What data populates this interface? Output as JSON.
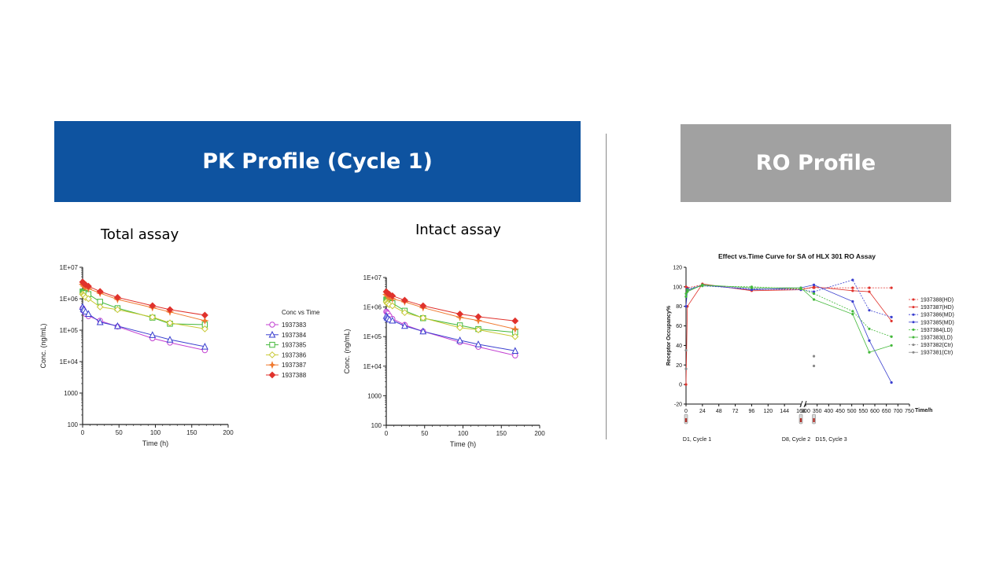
{
  "pk_banner": {
    "label": "PK Profile (Cycle 1)",
    "color": "#0e53a0"
  },
  "ro_banner": {
    "label": "RO Profile",
    "color": "#a1a1a1"
  },
  "chart_data": [
    {
      "type": "line",
      "title": "Total assay",
      "xlabel": "Time (h)",
      "ylabel": "Conc. (ng/mL)",
      "yscale": "log",
      "xlim": [
        0,
        200
      ],
      "ylim": [
        100,
        10000000
      ],
      "xticks": [
        "0",
        "50",
        "100",
        "150",
        "200"
      ],
      "yticks": [
        "100",
        "1000",
        "1E+04",
        "1E+05",
        "1E+06",
        "1E+07"
      ],
      "legend_title": "Conc vs Time",
      "legend_position": "right",
      "series": [
        {
          "name": "1937383",
          "color": "#c23fd1",
          "marker": "circle",
          "x": [
            0,
            1,
            2,
            4,
            8,
            24,
            48,
            96,
            120,
            168
          ],
          "y": [
            500000,
            420000,
            400000,
            330000,
            280000,
            200000,
            130000,
            55000,
            40000,
            23000
          ]
        },
        {
          "name": "1937384",
          "color": "#3a3fcf",
          "marker": "triangle",
          "x": [
            0,
            1,
            2,
            4,
            8,
            24,
            48,
            96,
            120,
            168
          ],
          "y": [
            550000,
            480000,
            450000,
            390000,
            330000,
            180000,
            135000,
            70000,
            50000,
            30000
          ]
        },
        {
          "name": "1937385",
          "color": "#43b83a",
          "marker": "square",
          "x": [
            0,
            1,
            2,
            4,
            8,
            24,
            48,
            96,
            120,
            168
          ],
          "y": [
            1700000,
            1600000,
            1550000,
            1500000,
            1400000,
            800000,
            500000,
            250000,
            160000,
            150000
          ]
        },
        {
          "name": "1937386",
          "color": "#c8c832",
          "marker": "diamond",
          "x": [
            0,
            1,
            2,
            4,
            8,
            24,
            48,
            96,
            120,
            168
          ],
          "y": [
            1400000,
            1300000,
            1250000,
            1100000,
            1000000,
            550000,
            450000,
            260000,
            170000,
            110000
          ]
        },
        {
          "name": "1937387",
          "color": "#f07a30",
          "marker": "star",
          "x": [
            0,
            1,
            2,
            4,
            8,
            24,
            48,
            96,
            120,
            168
          ],
          "y": [
            2900000,
            2700000,
            2500000,
            2300000,
            2100000,
            1500000,
            950000,
            520000,
            380000,
            200000
          ]
        },
        {
          "name": "1937388",
          "color": "#e0322c",
          "marker": "plus",
          "x": [
            0,
            1,
            2,
            4,
            8,
            24,
            48,
            96,
            120,
            168
          ],
          "y": [
            3400000,
            3200000,
            3000000,
            2800000,
            2500000,
            1700000,
            1100000,
            600000,
            450000,
            300000
          ]
        }
      ]
    },
    {
      "type": "line",
      "title": "Intact assay",
      "xlabel": "Time (h)",
      "ylabel": "Conc. (ng/mL)",
      "yscale": "log",
      "xlim": [
        0,
        200
      ],
      "ylim": [
        100,
        10000000
      ],
      "xticks": [
        "0",
        "50",
        "100",
        "150",
        "200"
      ],
      "yticks": [
        "100",
        "1000",
        "1E+04",
        "1E+05",
        "1E+06",
        "1E+07"
      ],
      "series": [
        {
          "name": "1937383",
          "color": "#c23fd1",
          "marker": "circle",
          "x": [
            0,
            1,
            2,
            4,
            8,
            24,
            48,
            96,
            120,
            168
          ],
          "y": [
            700000,
            650000,
            600000,
            500000,
            400000,
            250000,
            150000,
            65000,
            45000,
            23000
          ]
        },
        {
          "name": "1937384",
          "color": "#3a3fcf",
          "marker": "triangle",
          "x": [
            0,
            1,
            2,
            4,
            8,
            24,
            48,
            96,
            120,
            168
          ],
          "y": [
            500000,
            450000,
            420000,
            380000,
            350000,
            230000,
            150000,
            75000,
            55000,
            33000
          ]
        },
        {
          "name": "1937385",
          "color": "#43b83a",
          "marker": "square",
          "x": [
            0,
            1,
            2,
            4,
            8,
            24,
            48,
            96,
            120,
            168
          ],
          "y": [
            1800000,
            1700000,
            1600000,
            1450000,
            1350000,
            750000,
            420000,
            240000,
            180000,
            140000
          ]
        },
        {
          "name": "1937386",
          "color": "#c8c832",
          "marker": "diamond",
          "x": [
            0,
            1,
            2,
            4,
            8,
            24,
            48,
            96,
            120,
            168
          ],
          "y": [
            1500000,
            1350000,
            1300000,
            1200000,
            1100000,
            650000,
            430000,
            200000,
            170000,
            100000
          ]
        },
        {
          "name": "1937387",
          "color": "#f07a30",
          "marker": "star",
          "x": [
            0,
            1,
            2,
            4,
            8,
            24,
            48,
            96,
            120,
            168
          ],
          "y": [
            2700000,
            2500000,
            2300000,
            2100000,
            1900000,
            1500000,
            950000,
            450000,
            350000,
            180000
          ]
        },
        {
          "name": "1937388",
          "color": "#e0322c",
          "marker": "plus",
          "x": [
            0,
            1,
            2,
            4,
            8,
            24,
            48,
            96,
            120,
            168
          ],
          "y": [
            3300000,
            3100000,
            2900000,
            2700000,
            2400000,
            1700000,
            1100000,
            580000,
            470000,
            340000
          ]
        }
      ]
    },
    {
      "type": "line",
      "title": "Effect vs.Time Curve for SA of HLX 301 RO Assay",
      "xlabel": "Time/h",
      "ylabel": "Receptor Occupancy%",
      "xlim": [
        0,
        750
      ],
      "x_axis_break": [
        168,
        300
      ],
      "ylim": [
        -20,
        120
      ],
      "xticks": [
        "0",
        "24",
        "48",
        "72",
        "96",
        "120",
        "144",
        "168",
        "300",
        "350",
        "400",
        "450",
        "500",
        "550",
        "600",
        "650",
        "700",
        "750"
      ],
      "yticks": [
        "-20",
        "0",
        "20",
        "40",
        "60",
        "80",
        "100",
        "120"
      ],
      "dose_markers": [
        "D1, Cycle 1",
        "D8, Cycle 2",
        "D15, Cycle 3"
      ],
      "legend_position": "right",
      "series": [
        {
          "name": "1937388(HD)",
          "color": "#e0322c",
          "x": [
            0,
            2,
            24,
            96,
            168,
            336,
            504,
            576,
            672
          ],
          "y": [
            100,
            99,
            102,
            97,
            98,
            99,
            99,
            99,
            99
          ]
        },
        {
          "name": "1937387(HD)",
          "color": "#e0322c",
          "x": [
            0,
            2,
            24,
            96,
            168,
            336,
            504,
            576,
            672
          ],
          "y": [
            0,
            80,
            103,
            96,
            97,
            100,
            96,
            95,
            65
          ]
        },
        {
          "name": "1937386(MD)",
          "color": "#3a3fcf",
          "x": [
            0,
            2,
            24,
            96,
            168,
            336,
            504,
            576,
            672
          ],
          "y": [
            90,
            98,
            101,
            98,
            97,
            95,
            107,
            76,
            69
          ]
        },
        {
          "name": "1937385(MD)",
          "color": "#3a3fcf",
          "x": [
            0,
            2,
            24,
            96,
            168,
            336,
            504,
            576,
            672
          ],
          "y": [
            80,
            96,
            102,
            97,
            99,
            102,
            85,
            45,
            2
          ]
        },
        {
          "name": "1937384(LD)",
          "color": "#43b83a",
          "x": [
            0,
            2,
            24,
            96,
            168,
            336,
            504,
            576,
            672
          ],
          "y": [
            93,
            97,
            101,
            100,
            98,
            93,
            75,
            57,
            49
          ]
        },
        {
          "name": "1937383(LD)",
          "color": "#43b83a",
          "x": [
            0,
            2,
            24,
            96,
            168,
            336,
            504,
            576,
            672
          ],
          "y": [
            90,
            95,
            102,
            99,
            99,
            87,
            72,
            33,
            40
          ]
        },
        {
          "name": "1937382(Ctr)",
          "color": "#888888",
          "x": [
            0,
            336
          ],
          "y": [
            16,
            19
          ]
        },
        {
          "name": "1937381(Ctr)",
          "color": "#888888",
          "x": [
            0,
            336
          ],
          "y": [
            35,
            29
          ]
        }
      ]
    }
  ]
}
